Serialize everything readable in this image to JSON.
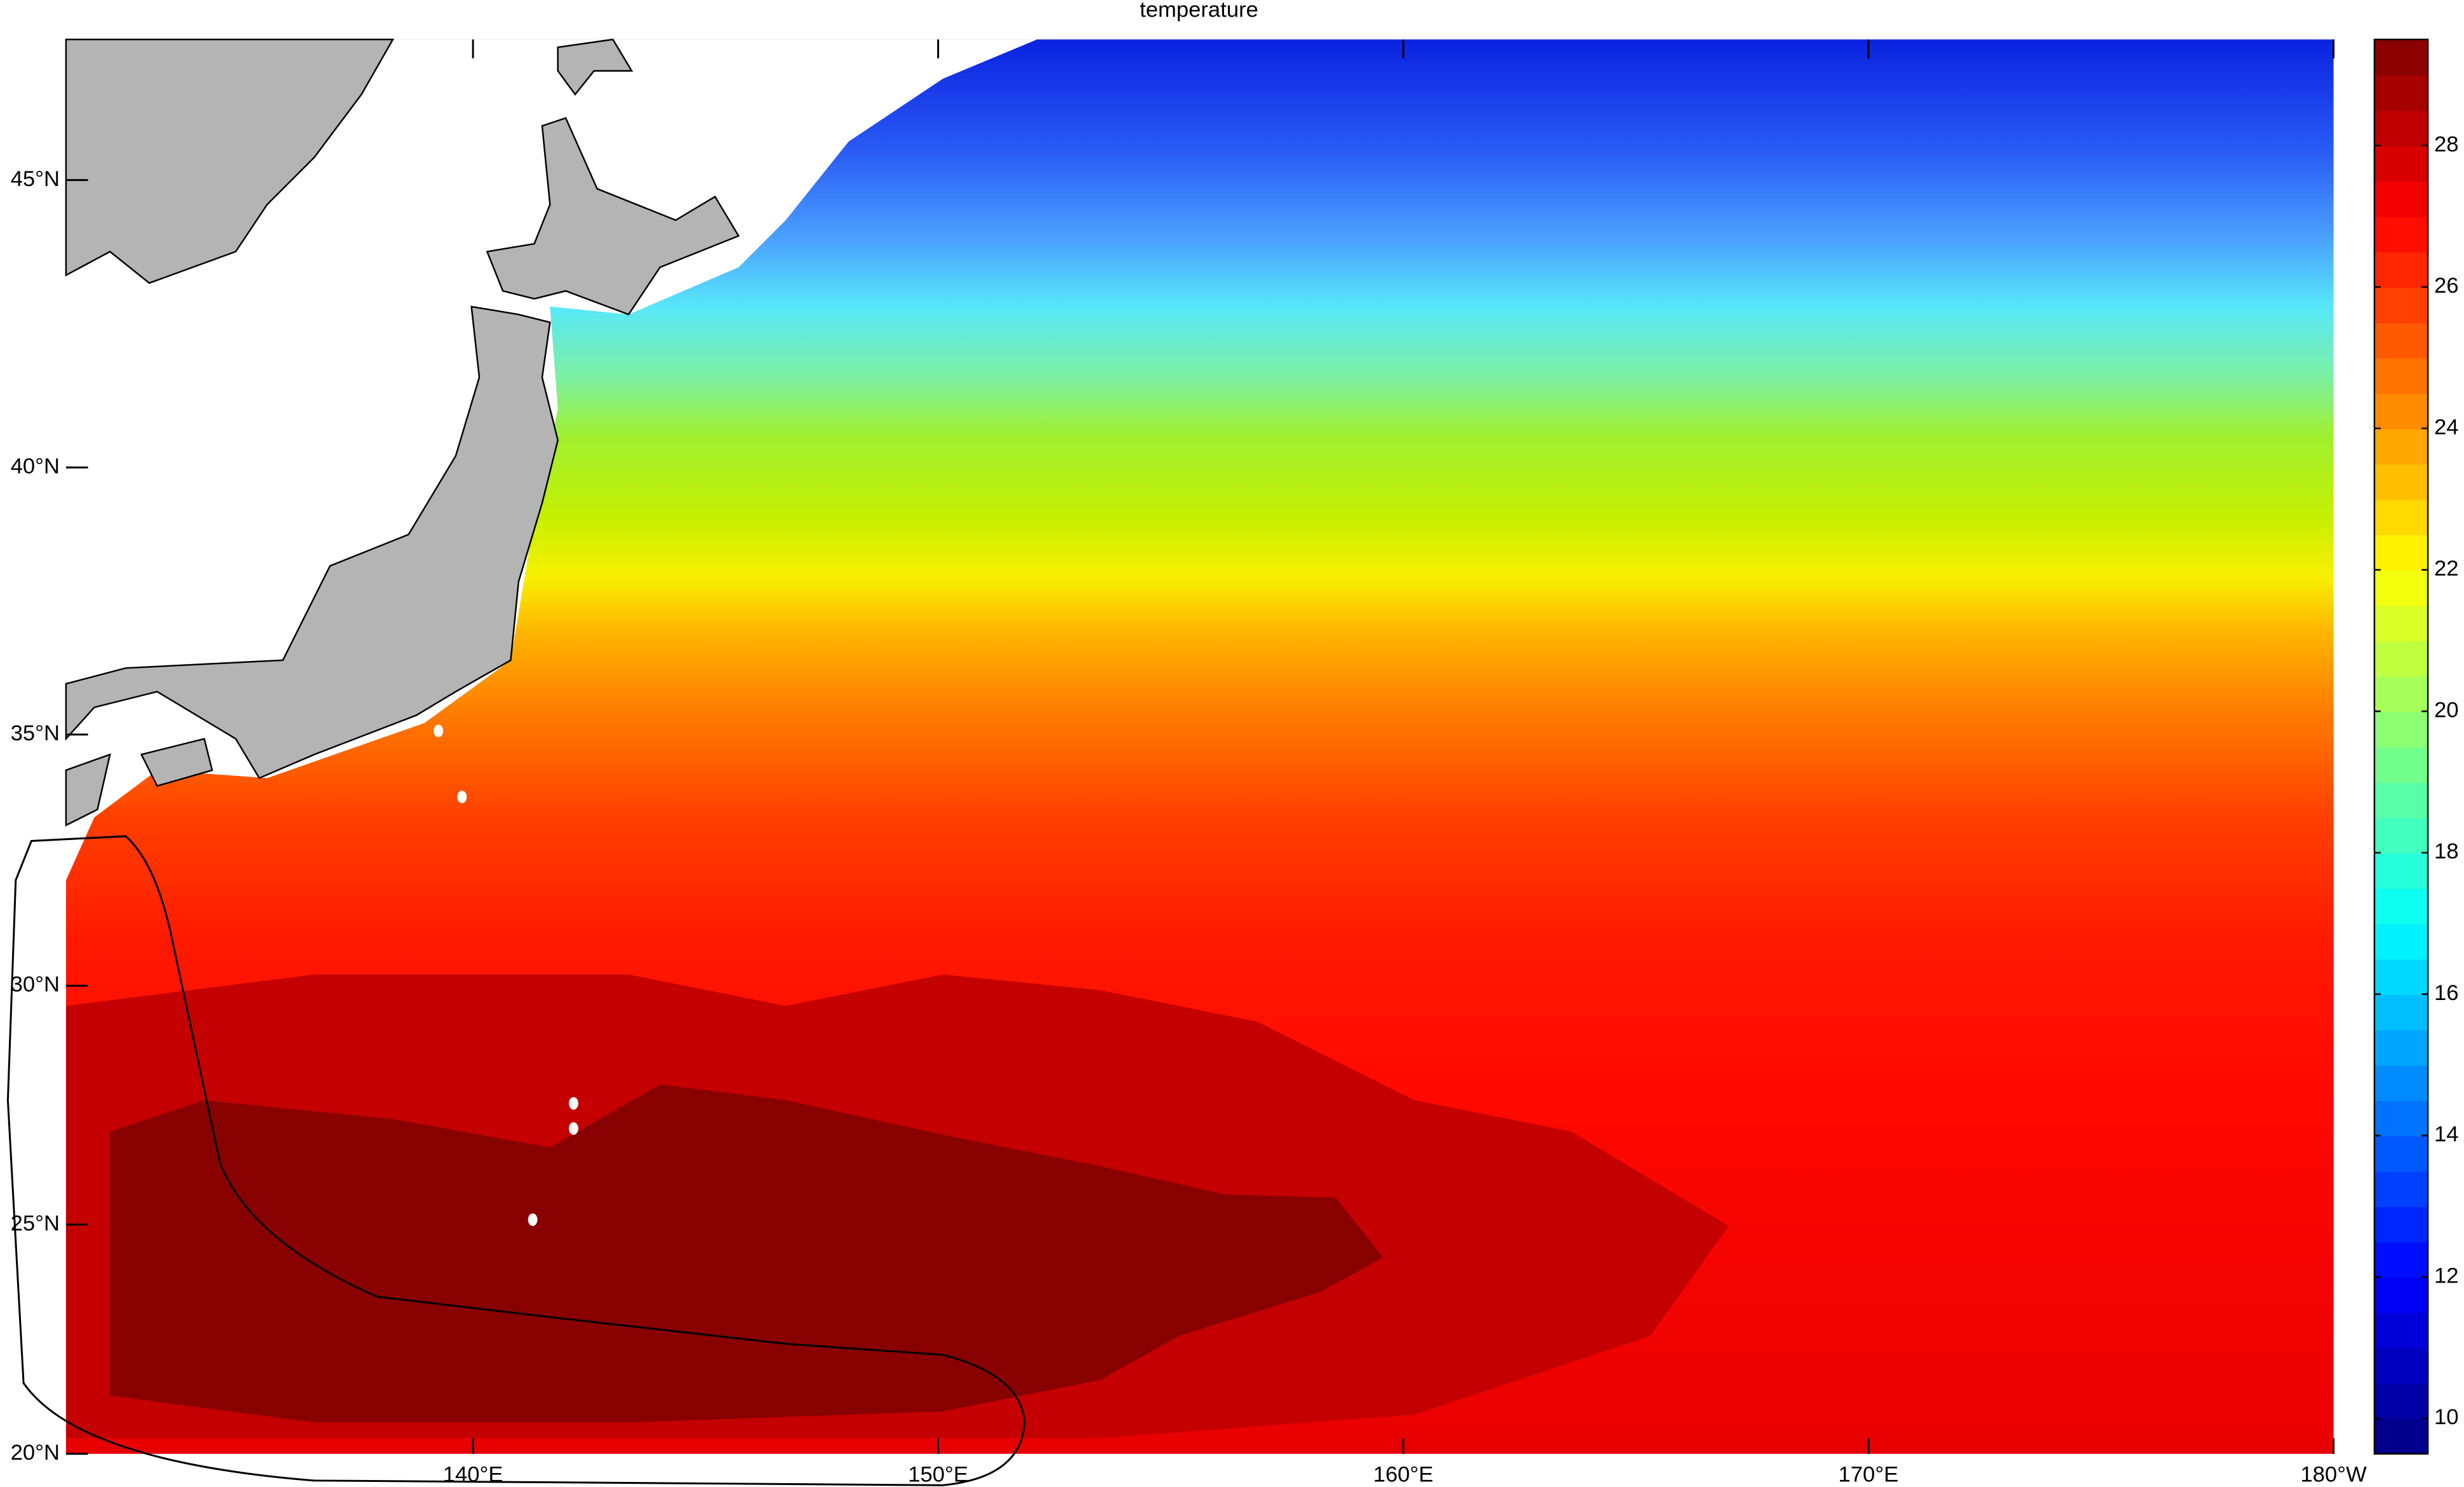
{
  "chart_data": {
    "type": "map",
    "projection": "mercator",
    "title": "temperature",
    "xlim": [
      131.25,
      180
    ],
    "ylim": [
      20,
      47.3
    ],
    "xticks": [
      {
        "value": 140,
        "label": "140°E"
      },
      {
        "value": 150,
        "label": "150°E"
      },
      {
        "value": 160,
        "label": "160°E"
      },
      {
        "value": 170,
        "label": "170°E"
      },
      {
        "value": 180,
        "label": "180°W"
      }
    ],
    "yticks": [
      {
        "value": 20,
        "label": "20°N"
      },
      {
        "value": 25,
        "label": "25°N"
      },
      {
        "value": 30,
        "label": "30°N"
      },
      {
        "value": 35,
        "label": "35°N"
      },
      {
        "value": 40,
        "label": "40°N"
      },
      {
        "value": 45,
        "label": "45°N"
      }
    ],
    "colormap": "jet",
    "clim": [
      9.5,
      29.5
    ],
    "cticks": [
      10,
      12,
      14,
      16,
      18,
      20,
      22,
      24,
      26,
      28
    ]
  }
}
